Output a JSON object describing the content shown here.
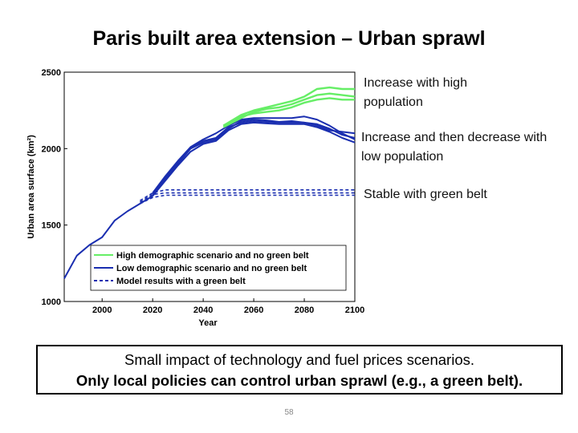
{
  "slide": {
    "title": "Paris built area extension – Urban sprawl",
    "page_number": "58"
  },
  "notes": {
    "high": "Increase with high population",
    "low": "Increase and then decrease with low population",
    "stable": "Stable with green belt"
  },
  "callout": {
    "line1": "Small impact of technology and fuel prices scenarios.",
    "line2": "Only local policies can control urban sprawl (e.g., a green belt)."
  },
  "colors": {
    "high": "#66ee66",
    "low": "#1a2eb0",
    "green_belt": "#1a2eb0",
    "axis": "#000000"
  },
  "chart_data": {
    "type": "line",
    "title": "",
    "xlabel": "Year",
    "ylabel": "Urban area surface (km²)",
    "xlim": [
      1985,
      2100
    ],
    "ylim": [
      1000,
      2500
    ],
    "xticks": [
      "2000",
      "2020",
      "2040",
      "2060",
      "2080",
      "2100"
    ],
    "yticks": [
      "1000",
      "1500",
      "2000",
      "2500"
    ],
    "grid": false,
    "legend_position": "bottom-right",
    "legend": [
      {
        "label": "High demographic scenario and no green belt",
        "style": "solid",
        "color": "#66ee66"
      },
      {
        "label": "Low demographic scenario and no green belt",
        "style": "solid",
        "color": "#1a2eb0"
      },
      {
        "label": "Model results with a green belt",
        "style": "dashed",
        "color": "#1a2eb0"
      }
    ],
    "series": [
      {
        "group": "history",
        "style": "solid",
        "color": "#1a2eb0",
        "x": [
          1985,
          1990,
          1995,
          2000,
          2005,
          2010,
          2015,
          2020
        ],
        "y": [
          1150,
          1300,
          1370,
          1420,
          1530,
          1590,
          1640,
          1690
        ]
      },
      {
        "group": "low",
        "style": "solid",
        "color": "#1a2eb0",
        "x": [
          2020,
          2025,
          2030,
          2035,
          2040,
          2045,
          2050,
          2055,
          2060,
          2065,
          2070,
          2075,
          2080,
          2085,
          2090,
          2095,
          2100
        ],
        "y": [
          1700,
          1810,
          1910,
          2000,
          2040,
          2060,
          2130,
          2180,
          2190,
          2185,
          2175,
          2180,
          2170,
          2150,
          2120,
          2110,
          2100
        ]
      },
      {
        "group": "low",
        "style": "solid",
        "color": "#1a2eb0",
        "x": [
          2020,
          2025,
          2030,
          2035,
          2040,
          2045,
          2050,
          2055,
          2060,
          2065,
          2070,
          2075,
          2080,
          2085,
          2090,
          2095,
          2100
        ],
        "y": [
          1690,
          1790,
          1890,
          1980,
          2030,
          2050,
          2120,
          2160,
          2170,
          2165,
          2160,
          2160,
          2160,
          2140,
          2110,
          2070,
          2040
        ]
      },
      {
        "group": "low",
        "style": "solid",
        "color": "#1a2eb0",
        "x": [
          2020,
          2025,
          2030,
          2035,
          2040,
          2045,
          2050,
          2055,
          2060,
          2065,
          2070,
          2075,
          2080,
          2085,
          2090,
          2095,
          2100
        ],
        "y": [
          1710,
          1820,
          1920,
          2010,
          2060,
          2100,
          2150,
          2190,
          2200,
          2200,
          2200,
          2200,
          2210,
          2190,
          2150,
          2100,
          2060
        ]
      },
      {
        "group": "low",
        "style": "solid",
        "color": "#1a2eb0",
        "x": [
          2020,
          2025,
          2030,
          2035,
          2040,
          2045,
          2050,
          2055,
          2060,
          2065,
          2070,
          2075,
          2080,
          2085,
          2090,
          2095,
          2100
        ],
        "y": [
          1700,
          1800,
          1900,
          2000,
          2050,
          2070,
          2140,
          2170,
          2180,
          2175,
          2170,
          2170,
          2170,
          2160,
          2130,
          2090,
          2070
        ]
      },
      {
        "group": "high",
        "style": "solid",
        "color": "#66ee66",
        "x": [
          2048,
          2055,
          2060,
          2065,
          2070,
          2075,
          2080,
          2085,
          2090,
          2095,
          2100
        ],
        "y": [
          2150,
          2220,
          2250,
          2270,
          2290,
          2310,
          2340,
          2390,
          2400,
          2390,
          2390
        ]
      },
      {
        "group": "high",
        "style": "solid",
        "color": "#66ee66",
        "x": [
          2048,
          2055,
          2060,
          2065,
          2070,
          2075,
          2080,
          2085,
          2090,
          2095,
          2100
        ],
        "y": [
          2140,
          2200,
          2240,
          2260,
          2270,
          2290,
          2320,
          2350,
          2360,
          2350,
          2340
        ]
      },
      {
        "group": "high",
        "style": "solid",
        "color": "#66ee66",
        "x": [
          2048,
          2055,
          2060,
          2065,
          2070,
          2075,
          2080,
          2085,
          2090,
          2095,
          2100
        ],
        "y": [
          2150,
          2210,
          2230,
          2240,
          2250,
          2270,
          2300,
          2320,
          2330,
          2320,
          2320
        ]
      },
      {
        "group": "green_belt",
        "style": "dashed",
        "color": "#1a2eb0",
        "x": [
          2015,
          2020,
          2025,
          2030,
          2100
        ],
        "y": [
          1660,
          1710,
          1730,
          1730,
          1730
        ]
      },
      {
        "group": "green_belt",
        "style": "dashed",
        "color": "#1a2eb0",
        "x": [
          2015,
          2020,
          2025,
          2030,
          2100
        ],
        "y": [
          1650,
          1700,
          1710,
          1710,
          1710
        ]
      },
      {
        "group": "green_belt",
        "style": "dashed",
        "color": "#1a2eb0",
        "x": [
          2015,
          2020,
          2025,
          2030,
          2100
        ],
        "y": [
          1640,
          1680,
          1695,
          1695,
          1695
        ]
      }
    ]
  }
}
